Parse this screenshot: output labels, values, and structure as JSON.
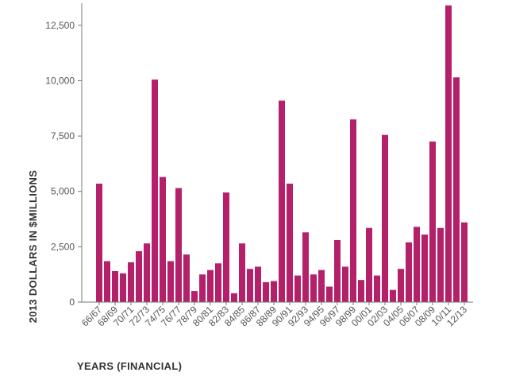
{
  "chart_data": {
    "type": "bar",
    "xlabel": "YEARS (FINANCIAL)",
    "ylabel": "2013 DOLLARS IN $MILLIONS",
    "ylim": [
      0,
      13500
    ],
    "yticks": [
      0,
      2500,
      5000,
      7500,
      10000,
      12500
    ],
    "ytick_labels": [
      "0",
      "2,500",
      "5,000",
      "7,500",
      "10,000",
      "12,500"
    ],
    "grid": false,
    "bar_color": "#b5206b",
    "categories": [
      "66/67",
      "67/68",
      "68/69",
      "69/70",
      "70/71",
      "71/72",
      "72/73",
      "73/74",
      "74/75",
      "75/76",
      "76/77",
      "77/78",
      "78/79",
      "79/80",
      "80/81",
      "81/82",
      "82/83",
      "83/84",
      "84/85",
      "85/86",
      "86/87",
      "87/88",
      "88/89",
      "89/90",
      "90/91",
      "91/92",
      "92/93",
      "93/94",
      "94/95",
      "95/96",
      "96/97",
      "97/98",
      "98/99",
      "99/00",
      "00/01",
      "01/02",
      "02/03",
      "03/04",
      "04/05",
      "05/06",
      "06/07",
      "07/08",
      "08/09",
      "09/10",
      "10/11",
      "11/12",
      "12/13"
    ],
    "xtick_labels_shown": [
      "66/67",
      "68/69",
      "70/71",
      "72/73",
      "74/75",
      "76/77",
      "78/79",
      "80/81",
      "82/83",
      "84/85",
      "86/87",
      "88/89",
      "90/91",
      "92/93",
      "94/95",
      "96/97",
      "98/99",
      "00/01",
      "02/03",
      "04/05",
      "06/07",
      "08/09",
      "10/11",
      "12/13"
    ],
    "values": [
      5350,
      1850,
      1400,
      1300,
      1800,
      2300,
      2650,
      10050,
      5650,
      1850,
      5150,
      2150,
      500,
      1250,
      1450,
      1750,
      4950,
      400,
      2650,
      1500,
      1600,
      900,
      950,
      9100,
      5350,
      1200,
      3150,
      1250,
      1450,
      700,
      2800,
      1600,
      8250,
      1000,
      3350,
      1200,
      7550,
      550,
      1500,
      2700,
      3400,
      3050,
      7250,
      3350,
      13400,
      10150,
      3600
    ]
  }
}
